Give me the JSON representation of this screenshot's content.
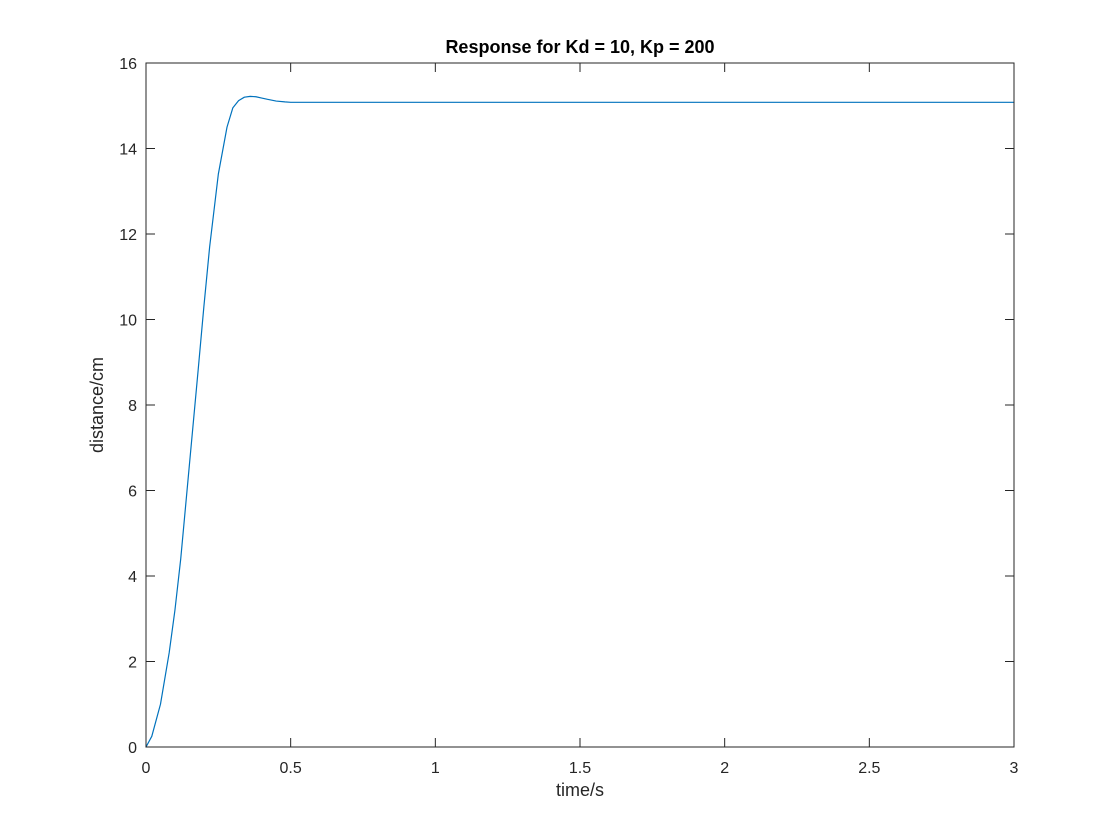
{
  "chart_data": {
    "type": "line",
    "title": "Response for Kd = 10, Kp = 200",
    "xlabel": "time/s",
    "ylabel": "distance/cm",
    "xlim": [
      0,
      3
    ],
    "ylim": [
      0,
      16
    ],
    "xticks": [
      0,
      0.5,
      1,
      1.5,
      2,
      2.5,
      3
    ],
    "xtick_labels": [
      "0",
      "0.5",
      "1",
      "1.5",
      "2",
      "2.5",
      "3"
    ],
    "yticks": [
      0,
      2,
      4,
      6,
      8,
      10,
      12,
      14,
      16
    ],
    "ytick_labels": [
      "0",
      "2",
      "4",
      "6",
      "8",
      "10",
      "12",
      "14",
      "16"
    ],
    "grid": false,
    "series": [
      {
        "color": "#0072BD",
        "x": [
          0,
          0.02,
          0.05,
          0.08,
          0.1,
          0.12,
          0.15,
          0.18,
          0.2,
          0.22,
          0.25,
          0.28,
          0.3,
          0.32,
          0.34,
          0.36,
          0.38,
          0.4,
          0.42,
          0.45,
          0.48,
          0.5,
          0.55,
          0.6,
          0.8,
          1.0,
          1.5,
          2.0,
          2.5,
          3.0
        ],
        "y": [
          0,
          0.25,
          1.0,
          2.2,
          3.2,
          4.4,
          6.6,
          8.8,
          10.3,
          11.7,
          13.4,
          14.5,
          14.95,
          15.12,
          15.2,
          15.22,
          15.21,
          15.18,
          15.15,
          15.11,
          15.09,
          15.08,
          15.08,
          15.08,
          15.08,
          15.08,
          15.08,
          15.08,
          15.08,
          15.08
        ]
      }
    ]
  }
}
